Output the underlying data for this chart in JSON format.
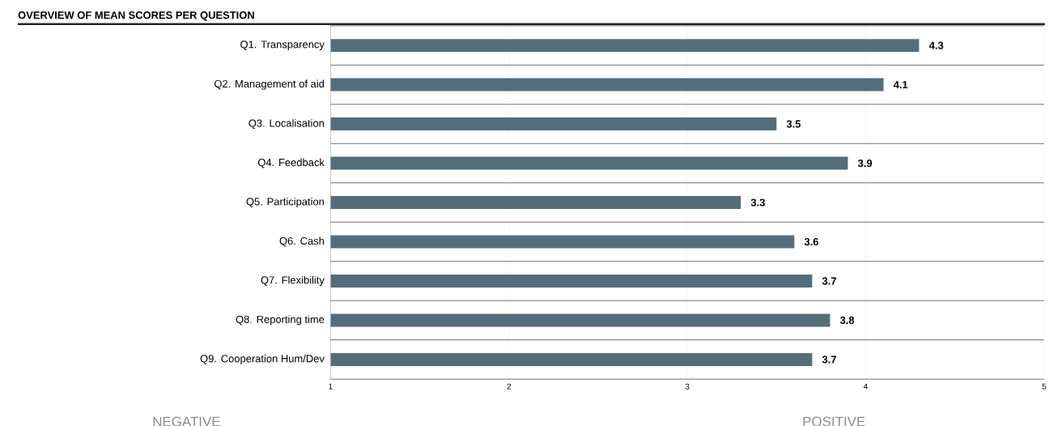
{
  "chart_data": {
    "type": "bar",
    "orientation": "horizontal",
    "title": "OVERVIEW OF MEAN SCORES PER QUESTION",
    "categories": [
      "Q1. Transparency",
      "Q2. Management of aid",
      "Q3. Localisation",
      "Q4. Feedback",
      "Q5. Participation",
      "Q6. Cash",
      "Q7. Flexibility",
      "Q8. Reporting time",
      "Q9. Cooperation Hum/Dev"
    ],
    "values": [
      4.3,
      4.1,
      3.5,
      3.9,
      3.3,
      3.6,
      3.7,
      3.8,
      3.7
    ],
    "color": "#526e7b",
    "xlim": [
      1,
      5
    ],
    "xticks": [
      1,
      2,
      3,
      4,
      5
    ],
    "grid": "x",
    "data_labels": true,
    "annotations": [
      "NEGATIVE",
      "POSITIVE"
    ]
  }
}
